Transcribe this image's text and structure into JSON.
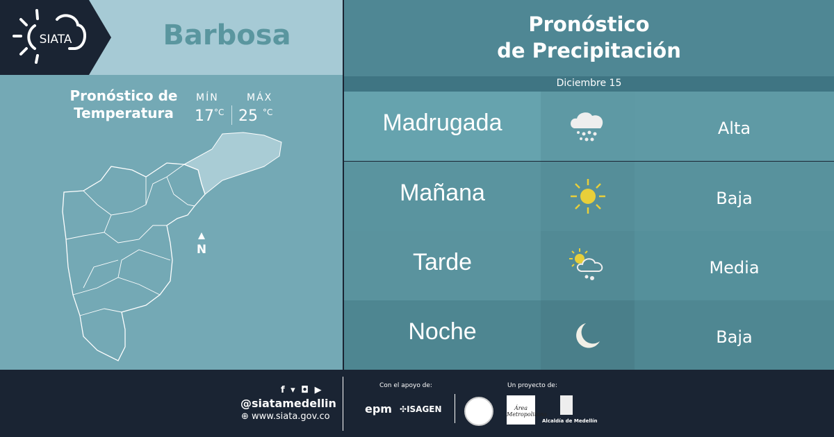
{
  "brand": {
    "logo_text": "SIATA"
  },
  "city": "Barbosa",
  "temperature": {
    "title_line1": "Pronóstico de",
    "title_line2": "Temperatura",
    "min_label": "MÍN",
    "max_label": "MÁX",
    "min_value": "17",
    "max_value": "25",
    "unit": "°C"
  },
  "map": {
    "north_label": "N",
    "highlighted_zone_color": "#a9ccd5"
  },
  "precipitation": {
    "title_line1": "Pronóstico",
    "title_line2": "de Precipitación",
    "date": "Diciembre 15",
    "periods": [
      {
        "label": "Madrugada",
        "icon": "rain-cloud-icon",
        "level": "Alta"
      },
      {
        "label": "Mañana",
        "icon": "sun-icon",
        "level": "Baja"
      },
      {
        "label": "Tarde",
        "icon": "sun-cloud-rain-icon",
        "level": "Media"
      },
      {
        "label": "Noche",
        "icon": "moon-icon",
        "level": "Baja"
      }
    ]
  },
  "footer": {
    "handle": "@siatamedellin",
    "website": "www.siata.gov.co",
    "support_label": "Con el apoyo de:",
    "support_logos": [
      "epm",
      "ISAGEN"
    ],
    "project_label": "Un proyecto de:",
    "project_logos": [
      "Área Metropolitana",
      "Alcaldía de Medellín"
    ],
    "social_icons": [
      "facebook-icon",
      "twitter-icon",
      "instagram-icon",
      "youtube-icon"
    ]
  }
}
